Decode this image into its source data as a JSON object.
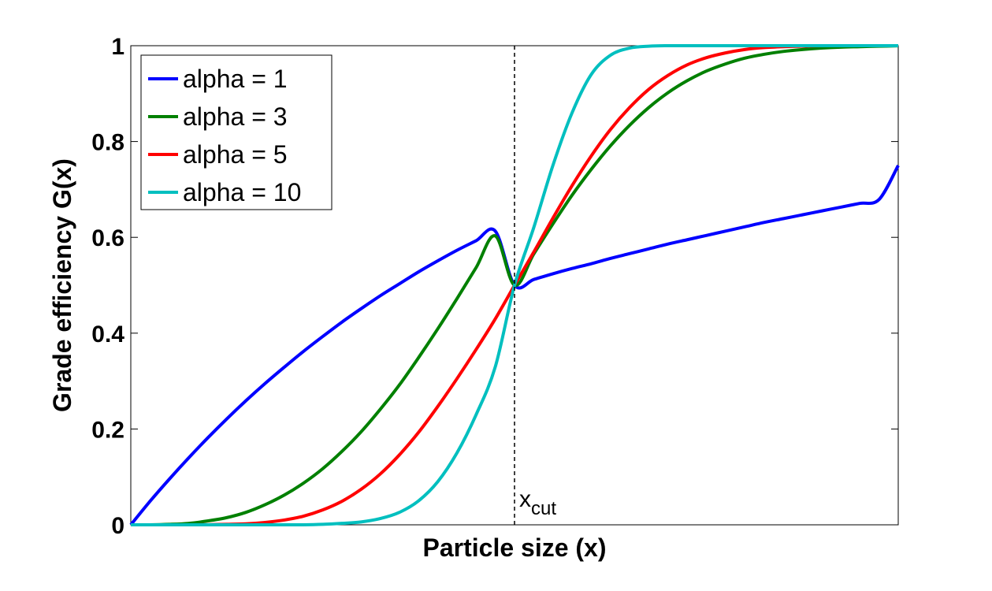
{
  "chart_data": {
    "type": "line",
    "xlabel": "Particle size (x)",
    "ylabel": "Grade efficiency G(x)",
    "xlim": [
      0,
      2
    ],
    "ylim": [
      0,
      1
    ],
    "x_ticks_shown": false,
    "y_ticks": [
      "0",
      "0.2",
      "0.4",
      "0.6",
      "0.8",
      "1"
    ],
    "grid": false,
    "legend_position": "top-left",
    "x": [
      0.0,
      0.05,
      0.1,
      0.15,
      0.2,
      0.25,
      0.3,
      0.35,
      0.4,
      0.45,
      0.5,
      0.55,
      0.6,
      0.65,
      0.7,
      0.75,
      0.8,
      0.85,
      0.9,
      0.95,
      1.0,
      1.05,
      1.1,
      1.15,
      1.2,
      1.25,
      1.3,
      1.35,
      1.4,
      1.45,
      1.5,
      1.55,
      1.6,
      1.65,
      1.7,
      1.75,
      1.8,
      1.85,
      1.9,
      1.95,
      2.0
    ],
    "series": [
      {
        "name": "alpha = 1",
        "color": "#0000ff",
        "values": [
          0.0,
          0.049,
          0.095,
          0.139,
          0.181,
          0.221,
          0.259,
          0.295,
          0.329,
          0.362,
          0.393,
          0.423,
          0.451,
          0.478,
          0.503,
          0.528,
          0.551,
          0.573,
          0.593,
          0.613,
          0.5,
          0.512,
          0.524,
          0.535,
          0.545,
          0.556,
          0.566,
          0.576,
          0.586,
          0.595,
          0.604,
          0.613,
          0.622,
          0.631,
          0.639,
          0.647,
          0.655,
          0.663,
          0.671,
          0.679,
          0.75
        ]
      },
      {
        "name": "alpha = 3",
        "color": "#008000",
        "values": [
          0.0,
          0.0001,
          0.001,
          0.003,
          0.008,
          0.015,
          0.026,
          0.042,
          0.062,
          0.087,
          0.117,
          0.153,
          0.194,
          0.241,
          0.292,
          0.349,
          0.409,
          0.472,
          0.537,
          0.603,
          0.5,
          0.565,
          0.628,
          0.688,
          0.742,
          0.791,
          0.834,
          0.871,
          0.902,
          0.927,
          0.947,
          0.962,
          0.974,
          0.982,
          0.988,
          0.992,
          0.995,
          0.997,
          0.998,
          0.999,
          0.9997
        ]
      },
      {
        "name": "alpha = 5",
        "color": "#ff0000",
        "values": [
          0.0,
          0.0,
          0.0,
          0.0,
          0.0003,
          0.001,
          0.002,
          0.005,
          0.01,
          0.018,
          0.031,
          0.049,
          0.074,
          0.106,
          0.146,
          0.193,
          0.247,
          0.305,
          0.366,
          0.43,
          0.5,
          0.569,
          0.64,
          0.708,
          0.77,
          0.825,
          0.871,
          0.909,
          0.938,
          0.96,
          0.975,
          0.985,
          0.992,
          0.996,
          0.998,
          0.999,
          1.0,
          1.0,
          1.0,
          1.0,
          1.0
        ]
      },
      {
        "name": "alpha = 10",
        "color": "#00bfbf",
        "values": [
          0.0,
          0.0,
          0.0,
          0.0,
          0.0,
          0.0,
          0.0,
          0.0,
          0.0,
          0.0001,
          0.001,
          0.003,
          0.006,
          0.013,
          0.026,
          0.05,
          0.09,
          0.15,
          0.23,
          0.33,
          0.5,
          0.62,
          0.75,
          0.86,
          0.94,
          0.98,
          0.995,
          0.999,
          1.0,
          1.0,
          1.0,
          1.0,
          1.0,
          1.0,
          1.0,
          1.0,
          1.0,
          1.0,
          1.0,
          1.0,
          1.0
        ]
      }
    ],
    "annotations": [
      {
        "type": "vline",
        "x": 1.0,
        "style": "dashed",
        "label_main": "x",
        "label_sub": "cut"
      }
    ]
  }
}
